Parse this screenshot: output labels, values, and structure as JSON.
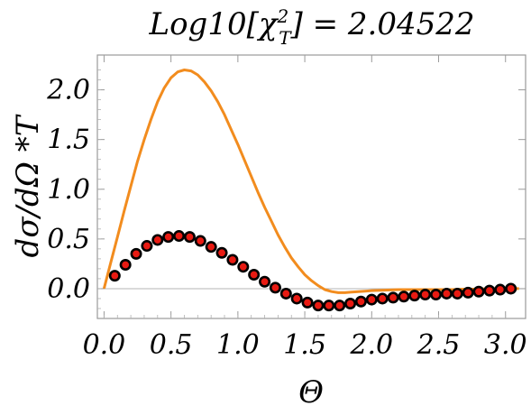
{
  "chart_data": {
    "type": "line",
    "title": "Log10[χ²T] = 2.04522",
    "title_parts": {
      "prefix": "Log10[",
      "chi": "χ",
      "sup": "2",
      "sub": "T",
      "suffix": "] = 2.04522"
    },
    "xlabel": "Θ",
    "ylabel": "dσ/dΩ *T",
    "xlim": [
      -0.05,
      3.15
    ],
    "ylim": [
      -0.3,
      2.35
    ],
    "x_ticks": [
      0.0,
      0.5,
      1.0,
      1.5,
      2.0,
      2.5,
      3.0
    ],
    "x_tick_labels": [
      "0.0",
      "0.5",
      "1.0",
      "1.5",
      "2.0",
      "2.5",
      "3.0"
    ],
    "y_ticks": [
      0.0,
      0.5,
      1.0,
      1.5,
      2.0
    ],
    "y_tick_labels": [
      "0.0",
      "0.5",
      "1.0",
      "1.5",
      "2.0"
    ],
    "grid": false,
    "legend": "none",
    "series": [
      {
        "kind": "line",
        "color": "#f28c1e",
        "x": [
          0.0,
          0.05,
          0.1,
          0.15,
          0.2,
          0.25,
          0.3,
          0.35,
          0.4,
          0.45,
          0.5,
          0.55,
          0.6,
          0.65,
          0.7,
          0.75,
          0.8,
          0.85,
          0.9,
          0.95,
          1.0,
          1.05,
          1.1,
          1.15,
          1.2,
          1.25,
          1.3,
          1.35,
          1.4,
          1.45,
          1.5,
          1.55,
          1.6,
          1.65,
          1.7,
          1.75,
          1.8,
          1.85,
          1.9,
          1.95,
          2.0,
          2.1,
          2.2,
          2.3,
          2.4,
          2.5,
          2.6,
          2.7,
          2.8,
          2.9,
          3.0,
          3.1
        ],
        "y": [
          0.0,
          0.26,
          0.52,
          0.78,
          1.03,
          1.28,
          1.5,
          1.7,
          1.88,
          2.02,
          2.12,
          2.18,
          2.2,
          2.19,
          2.15,
          2.08,
          1.99,
          1.88,
          1.75,
          1.6,
          1.45,
          1.29,
          1.13,
          0.97,
          0.82,
          0.68,
          0.54,
          0.42,
          0.31,
          0.22,
          0.14,
          0.08,
          0.03,
          -0.01,
          -0.03,
          -0.04,
          -0.04,
          -0.035,
          -0.03,
          -0.025,
          -0.02,
          -0.015,
          -0.01,
          -0.01,
          -0.01,
          -0.01,
          -0.01,
          -0.005,
          -0.005,
          0.0,
          0.0,
          0.0
        ]
      },
      {
        "kind": "scatter",
        "color": "#e81a12",
        "edge_color": "#000000",
        "x": [
          0.08,
          0.16,
          0.24,
          0.32,
          0.4,
          0.48,
          0.56,
          0.64,
          0.72,
          0.8,
          0.88,
          0.96,
          1.04,
          1.12,
          1.2,
          1.28,
          1.36,
          1.44,
          1.52,
          1.6,
          1.68,
          1.76,
          1.84,
          1.92,
          2.0,
          2.08,
          2.16,
          2.24,
          2.32,
          2.4,
          2.48,
          2.56,
          2.64,
          2.72,
          2.8,
          2.88,
          2.96,
          3.04
        ],
        "y": [
          0.13,
          0.24,
          0.35,
          0.43,
          0.49,
          0.52,
          0.53,
          0.52,
          0.48,
          0.42,
          0.36,
          0.29,
          0.22,
          0.14,
          0.07,
          0.01,
          -0.05,
          -0.1,
          -0.14,
          -0.17,
          -0.17,
          -0.17,
          -0.15,
          -0.13,
          -0.11,
          -0.1,
          -0.09,
          -0.08,
          -0.07,
          -0.06,
          -0.06,
          -0.05,
          -0.05,
          -0.04,
          -0.03,
          -0.02,
          -0.01,
          0.0
        ]
      }
    ]
  }
}
